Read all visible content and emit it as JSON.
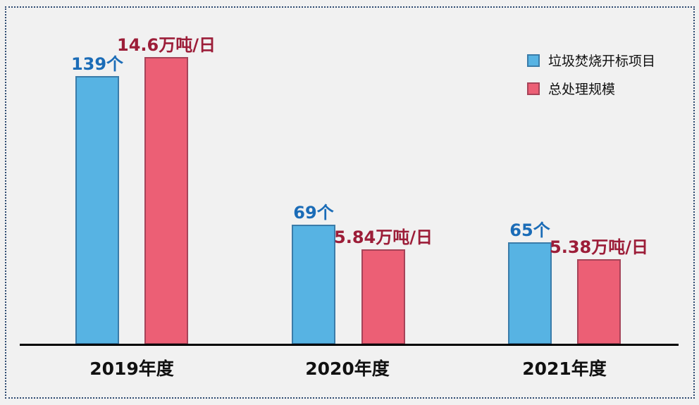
{
  "chart_data": {
    "type": "bar",
    "title": "",
    "xlabel": "",
    "ylabel": "",
    "grid": false,
    "legend_position": "top-right",
    "background": "#f1f1f1",
    "frame_border_color": "#2d4a71",
    "axis_color": "#000000",
    "categories": [
      "2019年度",
      "2020年度",
      "2021年度"
    ],
    "series": [
      {
        "name": "垃圾焚烧开标项目",
        "unit": "个",
        "values": [
          139,
          69,
          65
        ],
        "labels": [
          "139个",
          "69个",
          "65个"
        ],
        "fill": "#57b3e3",
        "border": "#3b7ca9",
        "label_color": "#1b6cb7"
      },
      {
        "name": "总处理规模",
        "unit": "万吨/日",
        "values": [
          14.6,
          5.84,
          5.38
        ],
        "labels": [
          "14.6万吨/日",
          "5.84万吨/日",
          "5.38万吨/日"
        ],
        "fill": "#ec5f75",
        "border": "#a64459",
        "label_color": "#9c1d38"
      }
    ]
  }
}
